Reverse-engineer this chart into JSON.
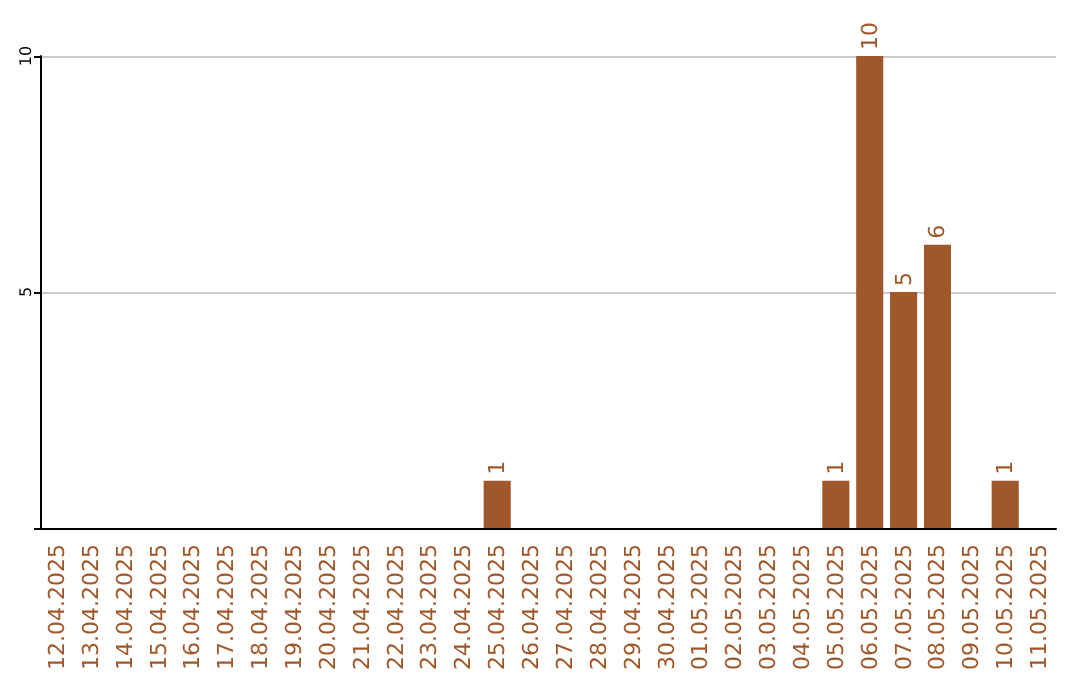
{
  "chart_data": {
    "type": "bar",
    "categories": [
      "12.04.2025",
      "13.04.2025",
      "14.04.2025",
      "15.04.2025",
      "16.04.2025",
      "17.04.2025",
      "18.04.2025",
      "19.04.2025",
      "20.04.2025",
      "21.04.2025",
      "22.04.2025",
      "23.04.2025",
      "24.04.2025",
      "25.04.2025",
      "26.04.2025",
      "27.04.2025",
      "28.04.2025",
      "29.04.2025",
      "30.04.2025",
      "01.05.2025",
      "02.05.2025",
      "03.05.2025",
      "04.05.2025",
      "05.05.2025",
      "06.05.2025",
      "07.05.2025",
      "08.05.2025",
      "09.05.2025",
      "10.05.2025",
      "11.05.2025"
    ],
    "values": [
      0,
      0,
      0,
      0,
      0,
      0,
      0,
      0,
      0,
      0,
      0,
      0,
      0,
      1,
      0,
      0,
      0,
      0,
      0,
      0,
      0,
      0,
      0,
      1,
      10,
      5,
      6,
      0,
      1,
      0
    ],
    "value_labels": [
      null,
      null,
      null,
      null,
      null,
      null,
      null,
      null,
      null,
      null,
      null,
      null,
      null,
      "1",
      null,
      null,
      null,
      null,
      null,
      null,
      null,
      null,
      null,
      "1",
      "10",
      "5",
      "6",
      null,
      "1",
      null
    ],
    "color": "#a0582a",
    "ylim": [
      0,
      10
    ],
    "yticks": [
      {
        "value": 0,
        "label": null
      },
      5,
      10
    ],
    "grid": "y"
  }
}
